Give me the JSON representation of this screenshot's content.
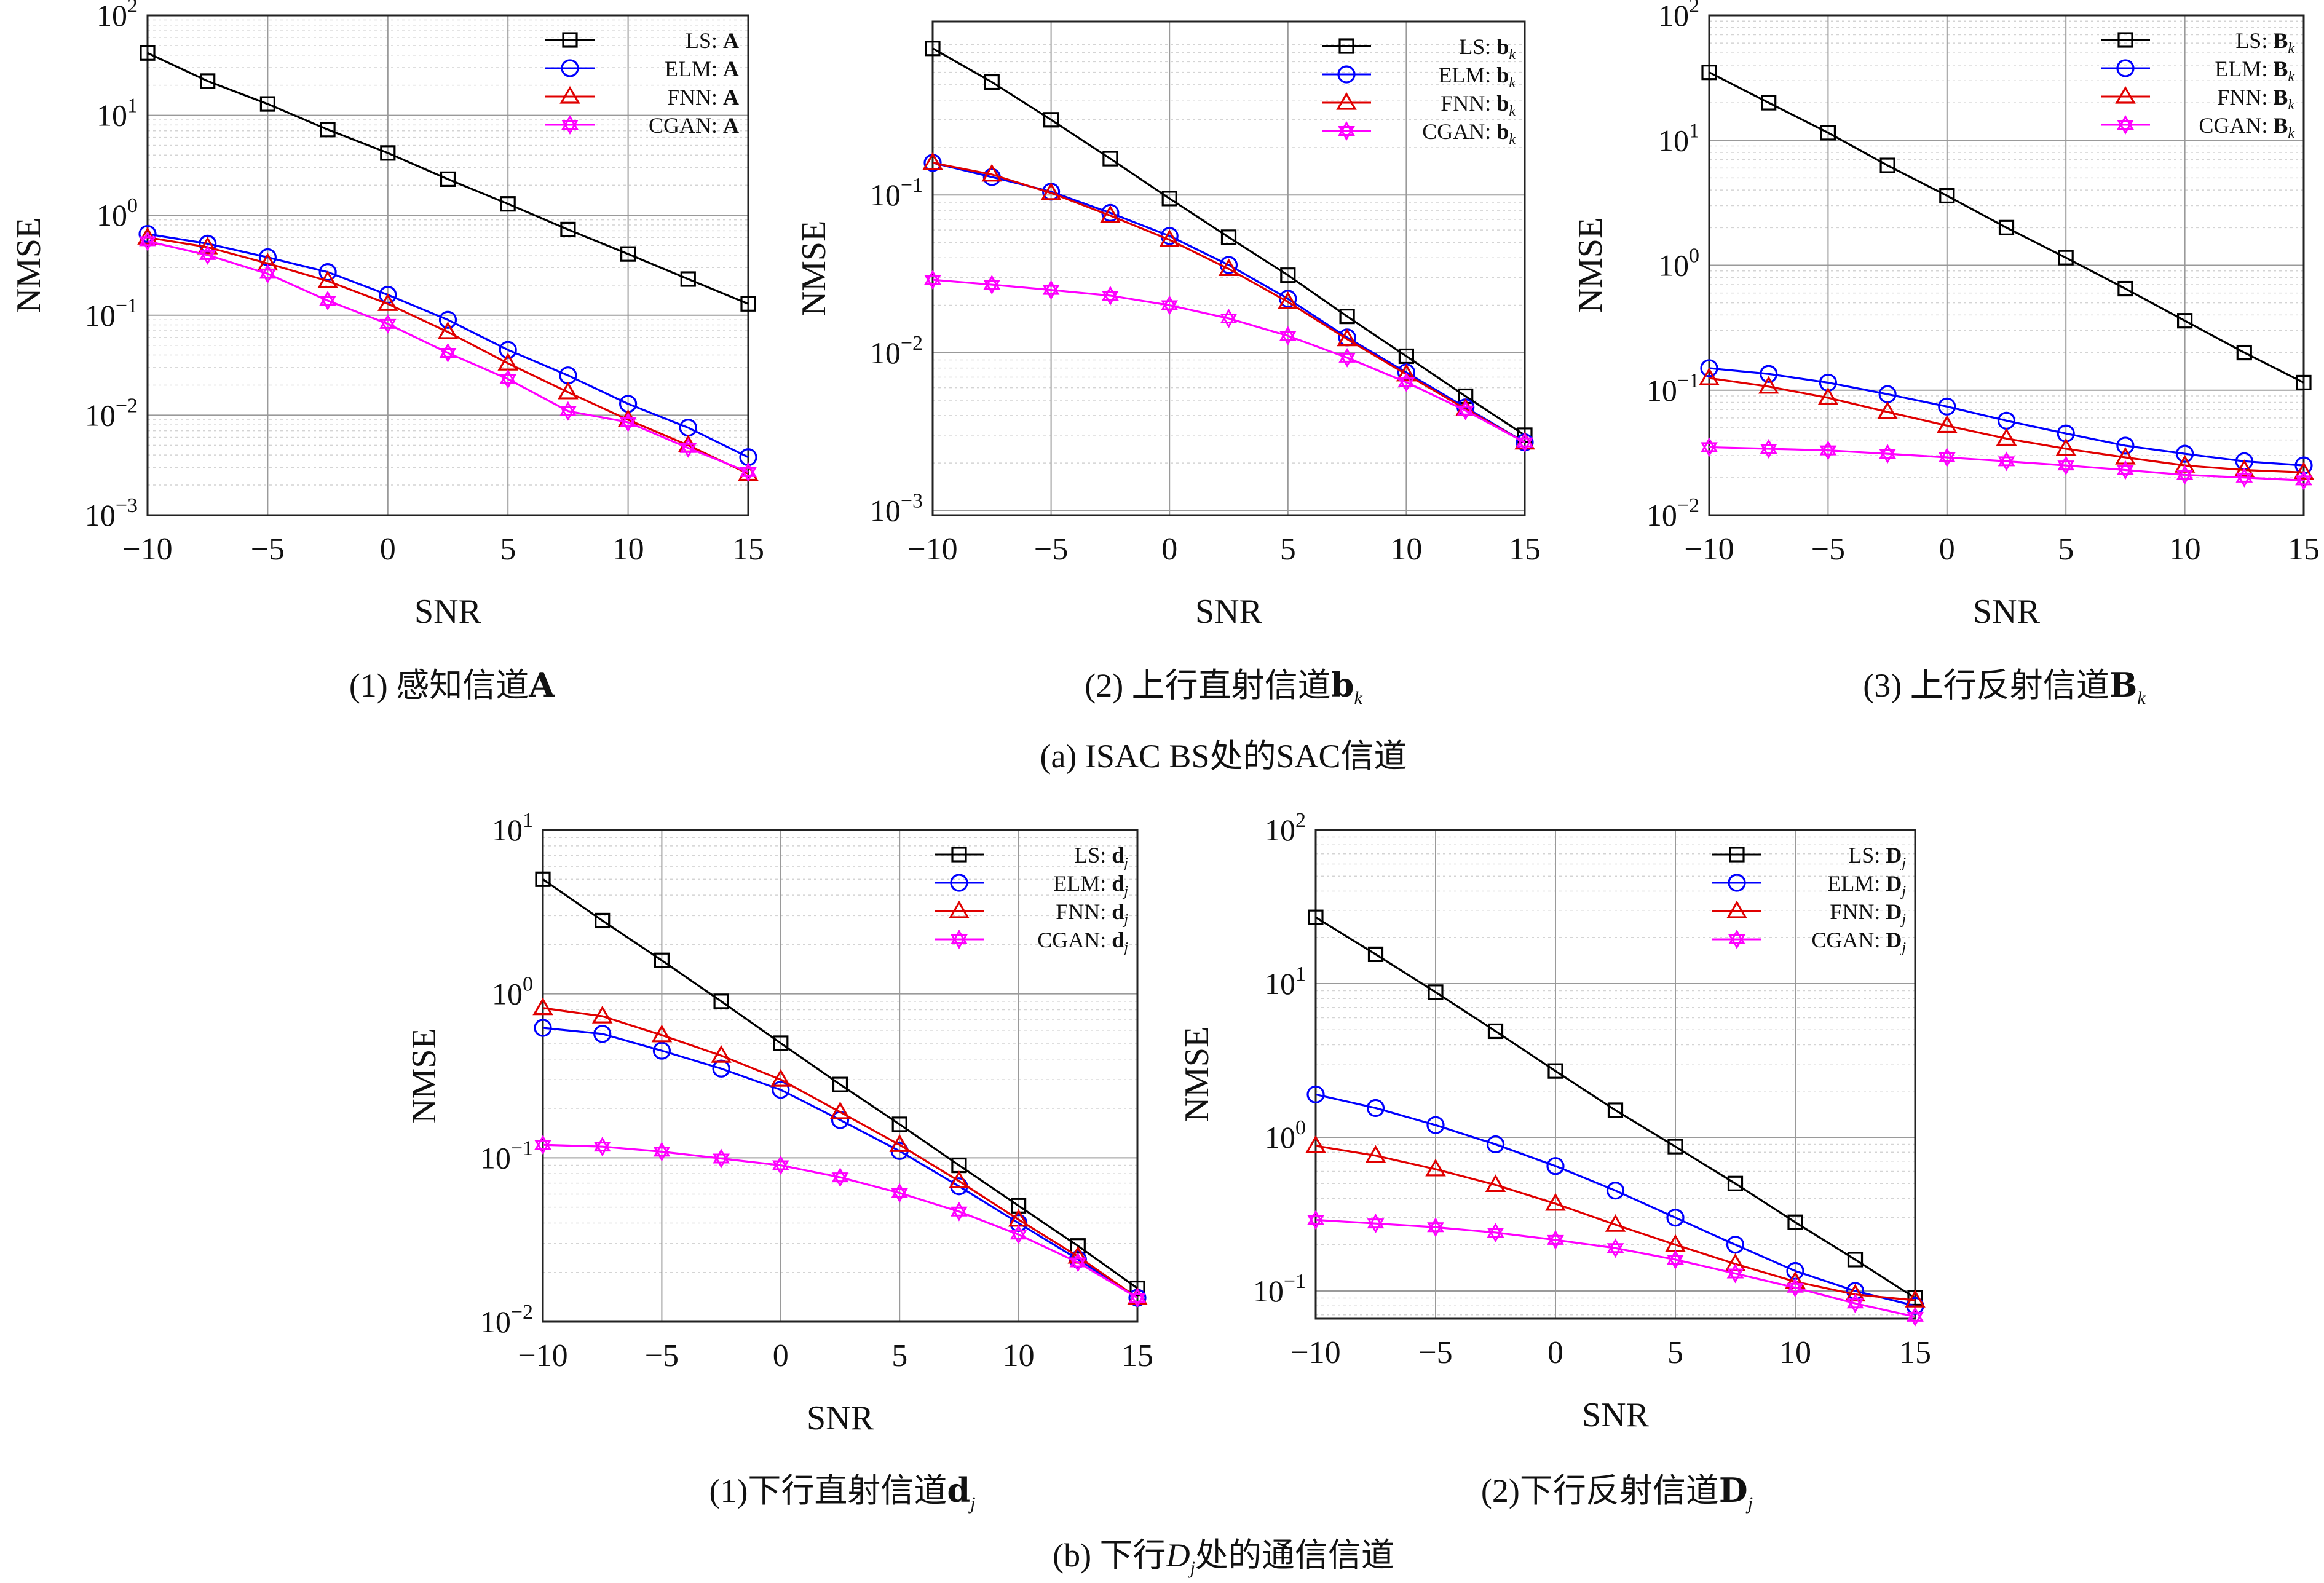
{
  "chart_data": [
    {
      "type": "line",
      "xlabel": "SNR",
      "ylabel": "NMSE",
      "x": [
        -10,
        -7.5,
        -5,
        -2.5,
        0,
        2.5,
        5,
        7.5,
        10,
        12.5,
        15
      ],
      "xlim": [
        -10,
        15
      ],
      "xticks": [
        "−10",
        "−5",
        "0",
        "5",
        "10",
        "15"
      ],
      "ylim_log10": [
        -3,
        2
      ],
      "yticks": [
        "10^-3",
        "10^-2",
        "10^-1",
        "10^0",
        "10^1",
        "10^2"
      ],
      "log_scale_y": true,
      "grid": true,
      "legend_position": "top-right",
      "series": [
        {
          "name": "LS: A",
          "values": [
            42,
            22,
            13,
            7.2,
            4.2,
            2.3,
            1.3,
            0.72,
            0.41,
            0.23,
            0.13
          ]
        },
        {
          "name": "ELM: A",
          "values": [
            0.65,
            0.52,
            0.38,
            0.27,
            0.16,
            0.09,
            0.045,
            0.025,
            0.013,
            0.0075,
            0.0038
          ]
        },
        {
          "name": "FNN: A",
          "values": [
            0.6,
            0.48,
            0.33,
            0.22,
            0.13,
            0.068,
            0.033,
            0.017,
            0.009,
            0.005,
            0.0026
          ]
        },
        {
          "name": "CGAN: A",
          "values": [
            0.55,
            0.4,
            0.26,
            0.14,
            0.082,
            0.042,
            0.023,
            0.011,
            0.0085,
            0.0047,
            0.0027
          ]
        }
      ]
    },
    {
      "type": "line",
      "xlabel": "SNR",
      "ylabel": "NMSE",
      "x": [
        -10,
        -7.5,
        -5,
        -2.5,
        0,
        2.5,
        5,
        7.5,
        10,
        12.5,
        15
      ],
      "xlim": [
        -10,
        15
      ],
      "xticks": [
        "−10",
        "−5",
        "0",
        "5",
        "10",
        "15"
      ],
      "ylim_log10": [
        -3.03,
        0.1
      ],
      "yticks": [
        "10^-3",
        "10^-2",
        "10^-1"
      ],
      "log_scale_y": true,
      "grid": true,
      "legend_position": "top-right",
      "series": [
        {
          "name": "LS: b_k",
          "values": [
            0.85,
            0.52,
            0.3,
            0.17,
            0.095,
            0.054,
            0.031,
            0.017,
            0.0095,
            0.0053,
            0.003
          ]
        },
        {
          "name": "ELM: b_k",
          "values": [
            0.16,
            0.13,
            0.105,
            0.077,
            0.055,
            0.036,
            0.022,
            0.0125,
            0.0075,
            0.0045,
            0.0027
          ]
        },
        {
          "name": "FNN: b_k",
          "values": [
            0.16,
            0.135,
            0.103,
            0.074,
            0.052,
            0.034,
            0.021,
            0.0122,
            0.0073,
            0.0044,
            0.0027
          ]
        },
        {
          "name": "CGAN: b_k",
          "values": [
            0.029,
            0.027,
            0.025,
            0.023,
            0.02,
            0.0165,
            0.0128,
            0.0093,
            0.0065,
            0.0043,
            0.0027
          ]
        }
      ]
    },
    {
      "type": "line",
      "xlabel": "SNR",
      "ylabel": "NMSE",
      "x": [
        -10,
        -7.5,
        -5,
        -2.5,
        0,
        2.5,
        5,
        7.5,
        10,
        12.5,
        15
      ],
      "xlim": [
        -10,
        15
      ],
      "xticks": [
        "−10",
        "−5",
        "0",
        "5",
        "10",
        "15"
      ],
      "ylim_log10": [
        -2,
        2
      ],
      "yticks": [
        "10^-2",
        "10^-1",
        "10^0",
        "10^1",
        "10^2"
      ],
      "log_scale_y": true,
      "grid": true,
      "legend_position": "top-right",
      "series": [
        {
          "name": "LS: B_k",
          "values": [
            35,
            20,
            11.5,
            6.3,
            3.6,
            2.0,
            1.15,
            0.65,
            0.36,
            0.2,
            0.115
          ]
        },
        {
          "name": "ELM: B_k",
          "values": [
            0.15,
            0.135,
            0.115,
            0.093,
            0.074,
            0.057,
            0.045,
            0.036,
            0.031,
            0.027,
            0.025
          ]
        },
        {
          "name": "FNN: B_k",
          "values": [
            0.125,
            0.107,
            0.087,
            0.067,
            0.052,
            0.041,
            0.034,
            0.029,
            0.025,
            0.023,
            0.022
          ]
        },
        {
          "name": "CGAN: B_k",
          "values": [
            0.035,
            0.034,
            0.033,
            0.031,
            0.029,
            0.027,
            0.025,
            0.023,
            0.021,
            0.02,
            0.019
          ]
        }
      ]
    },
    {
      "type": "line",
      "xlabel": "SNR",
      "ylabel": "NMSE",
      "x": [
        -10,
        -7.5,
        -5,
        -2.5,
        0,
        2.5,
        5,
        7.5,
        10,
        12.5,
        15
      ],
      "xlim": [
        -10,
        15
      ],
      "xticks": [
        "−10",
        "−5",
        "0",
        "5",
        "10",
        "15"
      ],
      "ylim_log10": [
        -2,
        1
      ],
      "yticks": [
        "10^-2",
        "10^-1",
        "10^0",
        "10^1"
      ],
      "log_scale_y": true,
      "grid": true,
      "legend_position": "top-right",
      "series": [
        {
          "name": "LS: d_j",
          "values": [
            5.0,
            2.8,
            1.6,
            0.9,
            0.5,
            0.28,
            0.16,
            0.09,
            0.051,
            0.029,
            0.016
          ]
        },
        {
          "name": "ELM: d_j",
          "values": [
            0.62,
            0.57,
            0.45,
            0.35,
            0.26,
            0.17,
            0.11,
            0.067,
            0.04,
            0.024,
            0.014
          ]
        },
        {
          "name": "FNN: d_j",
          "values": [
            0.82,
            0.73,
            0.56,
            0.42,
            0.3,
            0.19,
            0.12,
            0.072,
            0.042,
            0.025,
            0.014
          ]
        },
        {
          "name": "CGAN: d_j",
          "values": [
            0.12,
            0.117,
            0.109,
            0.099,
            0.09,
            0.076,
            0.061,
            0.047,
            0.034,
            0.023,
            0.014
          ]
        }
      ]
    },
    {
      "type": "line",
      "xlabel": "SNR",
      "ylabel": "NMSE",
      "x": [
        -10,
        -7.5,
        -5,
        -2.5,
        0,
        2.5,
        5,
        7.5,
        10,
        12.5,
        15
      ],
      "xlim": [
        -10,
        15
      ],
      "xticks": [
        "−10",
        "−5",
        "0",
        "5",
        "10",
        "15"
      ],
      "ylim_log10": [
        -1.18,
        2
      ],
      "yticks": [
        "10^-1",
        "10^0",
        "10^1",
        "10^2"
      ],
      "log_scale_y": true,
      "grid": true,
      "legend_position": "top-right",
      "series": [
        {
          "name": "LS: D_j",
          "values": [
            27,
            15.5,
            8.8,
            4.9,
            2.7,
            1.5,
            0.87,
            0.5,
            0.28,
            0.16,
            0.09
          ]
        },
        {
          "name": "ELM: D_j",
          "values": [
            1.9,
            1.55,
            1.2,
            0.9,
            0.65,
            0.45,
            0.3,
            0.2,
            0.135,
            0.1,
            0.08
          ]
        },
        {
          "name": "FNN: D_j",
          "values": [
            0.88,
            0.76,
            0.62,
            0.49,
            0.37,
            0.27,
            0.2,
            0.15,
            0.115,
            0.095,
            0.087
          ]
        },
        {
          "name": "CGAN: D_j",
          "values": [
            0.29,
            0.275,
            0.26,
            0.24,
            0.215,
            0.19,
            0.16,
            0.13,
            0.105,
            0.083,
            0.068
          ]
        }
      ]
    }
  ],
  "colors": {
    "LS": "#000000",
    "ELM": "#0000ff",
    "FNN": "#e00000",
    "CGAN": "#ff00ff"
  },
  "captions": {
    "sub1": "(1) 感知信道",
    "sub1_bold": "A",
    "sub2": "(2) 上行直射信道",
    "sub2_bold": "b",
    "sub2_sub": "k",
    "sub3": "(3) 上行反射信道",
    "sub3_bold": "B",
    "sub3_sub": "k",
    "group_a": "(a) ISAC BS处的SAC信道",
    "sub4": "(1)下行直射信道",
    "sub4_bold": "d",
    "sub4_sub": "j",
    "sub5": "(2)下行反射信道",
    "sub5_bold": "D",
    "sub5_sub": "j",
    "group_b_pre": "(b) 下行",
    "group_b_var": "D",
    "group_b_sub": "j",
    "group_b_post": "处的通信信道"
  },
  "legend_names": [
    "LS",
    "ELM",
    "FNN",
    "CGAN"
  ]
}
